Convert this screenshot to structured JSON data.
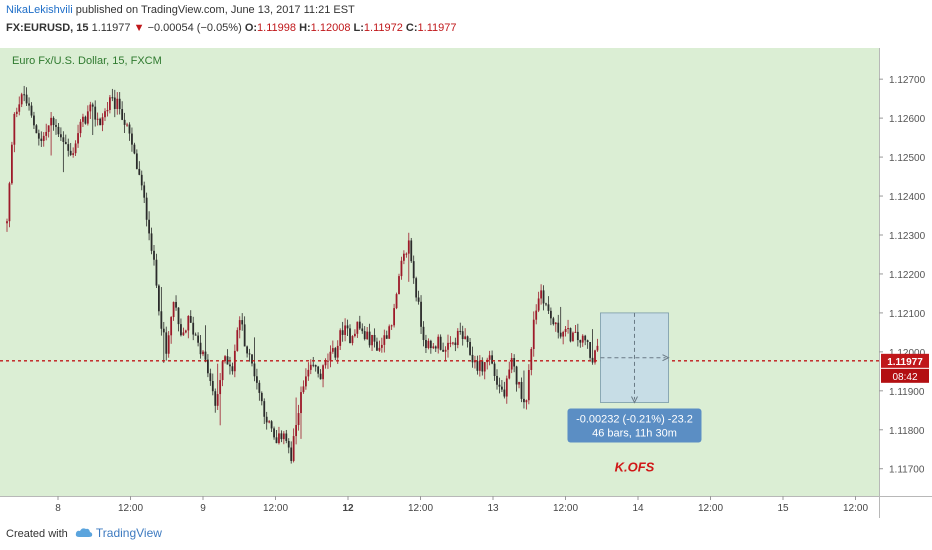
{
  "header": {
    "author": "NikaLekishvili",
    "published_text": "published on TradingView.com, June 13, 2017 11:21 EST",
    "symbol": "FX:EURUSD, 15",
    "last": "1.11977",
    "change": "−0.00054 (−0.05%)",
    "o_label": "O:",
    "o_value": "1.11998",
    "h_label": "H:",
    "h_value": "1.12008",
    "l_label": "L:",
    "l_value": "1.11972",
    "c_label": "C:",
    "c_value": "1.11977"
  },
  "footer": {
    "created_with": "Created with",
    "brand": "TradingView"
  },
  "colors": {
    "background": "#dbeed4",
    "candle_up": "#9d1a2a",
    "candle_down": "#2b2b2b",
    "price_line": "#c0171a",
    "measure_fill": "#c7dde6",
    "measure_label_bg": "#5b8ec4"
  },
  "chart_data": {
    "type": "candlestick",
    "title": "Euro Fx/U.S. Dollar, 15, FXCM",
    "x_tick_labels": [
      "8",
      "12:00",
      "9",
      "12:00",
      "12",
      "12:00",
      "13",
      "12:00",
      "14",
      "12:00",
      "15",
      "12:00"
    ],
    "bold_x_ticks": [
      "12"
    ],
    "y_tick_labels": [
      "1.12700",
      "1.12600",
      "1.12500",
      "1.12400",
      "1.12300",
      "1.12200",
      "1.12100",
      "1.12000",
      "1.11900",
      "1.11800",
      "1.11700"
    ],
    "ylim": [
      1.1163,
      1.1278
    ],
    "bar_count": 355,
    "close_path": [
      [
        0,
        1.1233
      ],
      [
        3,
        1.1262
      ],
      [
        7,
        1.1266
      ],
      [
        10,
        1.126
      ],
      [
        14,
        1.1254
      ],
      [
        18,
        1.1259
      ],
      [
        22,
        1.1256
      ],
      [
        26,
        1.125
      ],
      [
        30,
        1.1258
      ],
      [
        34,
        1.1262
      ],
      [
        38,
        1.1259
      ],
      [
        42,
        1.1264
      ],
      [
        46,
        1.1263
      ],
      [
        50,
        1.1255
      ],
      [
        54,
        1.1245
      ],
      [
        58,
        1.1232
      ],
      [
        62,
        1.1212
      ],
      [
        65,
        1.1199
      ],
      [
        68,
        1.1213
      ],
      [
        71,
        1.1203
      ],
      [
        74,
        1.1208
      ],
      [
        78,
        1.1203
      ],
      [
        82,
        1.1195
      ],
      [
        85,
        1.1186
      ],
      [
        87,
        1.1193
      ],
      [
        89,
        1.1199
      ],
      [
        92,
        1.1196
      ],
      [
        95,
        1.1209
      ],
      [
        98,
        1.12
      ],
      [
        101,
        1.1195
      ],
      [
        104,
        1.1187
      ],
      [
        107,
        1.1181
      ],
      [
        110,
        1.1176
      ],
      [
        113,
        1.118
      ],
      [
        116,
        1.1172
      ],
      [
        119,
        1.1186
      ],
      [
        122,
        1.1193
      ],
      [
        125,
        1.1196
      ],
      [
        128,
        1.1194
      ],
      [
        131,
        1.1198
      ],
      [
        134,
        1.12
      ],
      [
        137,
        1.1206
      ],
      [
        140,
        1.1204
      ],
      [
        143,
        1.1207
      ],
      [
        146,
        1.1204
      ],
      [
        149,
        1.1203
      ],
      [
        152,
        1.1201
      ],
      [
        155,
        1.1205
      ],
      [
        158,
        1.121
      ],
      [
        161,
        1.1222
      ],
      [
        164,
        1.1228
      ],
      [
        167,
        1.1215
      ],
      [
        170,
        1.1204
      ],
      [
        173,
        1.12
      ],
      [
        176,
        1.1203
      ],
      [
        179,
        1.12
      ],
      [
        182,
        1.1202
      ],
      [
        185,
        1.1205
      ],
      [
        188,
        1.1201
      ],
      [
        191,
        1.1197
      ],
      [
        194,
        1.1196
      ],
      [
        197,
        1.1199
      ],
      [
        200,
        1.1192
      ],
      [
        203,
        1.1189
      ],
      [
        206,
        1.1197
      ],
      [
        209,
        1.1191
      ],
      [
        212,
        1.1187
      ],
      [
        215,
        1.1209
      ],
      [
        218,
        1.1216
      ],
      [
        221,
        1.121
      ],
      [
        224,
        1.1206
      ],
      [
        227,
        1.1205
      ],
      [
        231,
        1.1204
      ],
      [
        234,
        1.1203
      ],
      [
        237,
        1.1202
      ],
      [
        238,
        1.1198
      ],
      [
        241,
        1.1201
      ]
    ],
    "last_price": "1.11977",
    "last_price_value": 1.11977,
    "countdown": "08:42",
    "measure": {
      "line1": "-0.00232 (-0.21%) -23.2",
      "line2": "46 bars, 11h 30m",
      "price_from": 1.121,
      "price_to": 1.1187,
      "bars": 46
    },
    "annotation": "K.OFS",
    "x_axis_labels": [],
    "y_axis_label": ""
  }
}
